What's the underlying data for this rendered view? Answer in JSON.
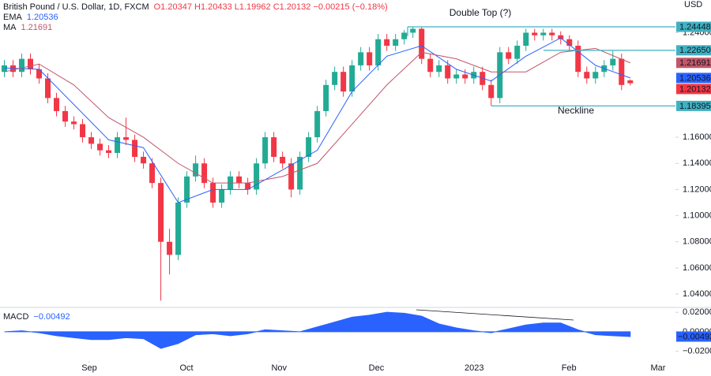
{
  "chart_data": [
    {
      "type": "candlestick",
      "title": "British Pound / U.S. Dollar, 1D, FXCM",
      "subtitle": "O1.20347 H1.20433 L1.19962 C1.20132 −0.00215 (−0.18%)",
      "unit": "USD",
      "xlim": [
        -0.5,
        77.2
      ],
      "xticks": [
        {
          "value": 9.77,
          "label": "Sep"
        },
        {
          "value": 20.95,
          "label": "Oct"
        },
        {
          "value": 31.6,
          "label": "Nov"
        },
        {
          "value": 42.8,
          "label": "Dec"
        },
        {
          "value": 54.05,
          "label": "2023"
        },
        {
          "value": 64.95,
          "label": "Feb"
        },
        {
          "value": 75.2,
          "label": "Mar"
        }
      ],
      "ylim": [
        1.031,
        1.265
      ],
      "yticks": [
        {
          "value": 1.04,
          "label": "1.04000"
        },
        {
          "value": 1.06,
          "label": "1.06000"
        },
        {
          "value": 1.08,
          "label": "1.08000"
        },
        {
          "value": 1.1,
          "label": "1.10000"
        },
        {
          "value": 1.12,
          "label": "1.12000"
        },
        {
          "value": 1.14,
          "label": "1.14000"
        },
        {
          "value": 1.16,
          "label": "1.16000"
        },
        {
          "value": 1.24,
          "label": "1.24000"
        }
      ],
      "up_color": "#22ab94",
      "down_color": "#f23645",
      "open": [
        1.21,
        1.215,
        1.21,
        1.22,
        1.212,
        1.205,
        1.19,
        1.18,
        1.172,
        1.17,
        1.16,
        1.155,
        1.15,
        1.148,
        1.16,
        1.158,
        1.145,
        1.14,
        1.125,
        1.08,
        1.07,
        1.11,
        1.13,
        1.14,
        1.125,
        1.11,
        1.12,
        1.13,
        1.125,
        1.12,
        1.14,
        1.16,
        1.145,
        1.14,
        1.12,
        1.145,
        1.16,
        1.18,
        1.2,
        1.21,
        1.195,
        1.215,
        1.225,
        1.215,
        1.235,
        1.23,
        1.235,
        1.24,
        1.243,
        1.22,
        1.21,
        1.215,
        1.205,
        1.208,
        1.205,
        1.21,
        1.2,
        1.19,
        1.225,
        1.22,
        1.23,
        1.24,
        1.238,
        1.24,
        1.238,
        1.235,
        1.23,
        1.21,
        1.205,
        1.21,
        1.215,
        1.22,
        1.20347
      ],
      "high": [
        1.219,
        1.219,
        1.224,
        1.224,
        1.216,
        1.209,
        1.194,
        1.184,
        1.176,
        1.174,
        1.164,
        1.159,
        1.154,
        1.164,
        1.175,
        1.162,
        1.149,
        1.144,
        1.129,
        1.09,
        1.114,
        1.134,
        1.146,
        1.144,
        1.129,
        1.124,
        1.134,
        1.134,
        1.129,
        1.144,
        1.164,
        1.164,
        1.149,
        1.144,
        1.149,
        1.164,
        1.184,
        1.204,
        1.214,
        1.214,
        1.219,
        1.229,
        1.229,
        1.239,
        1.239,
        1.239,
        1.242,
        1.2445,
        1.244,
        1.224,
        1.219,
        1.219,
        1.212,
        1.212,
        1.214,
        1.214,
        1.204,
        1.229,
        1.229,
        1.234,
        1.243,
        1.243,
        1.243,
        1.243,
        1.241,
        1.238,
        1.234,
        1.214,
        1.214,
        1.219,
        1.226,
        1.224,
        1.20433
      ],
      "low": [
        1.206,
        1.206,
        1.206,
        1.208,
        1.201,
        1.186,
        1.176,
        1.168,
        1.166,
        1.156,
        1.151,
        1.146,
        1.144,
        1.144,
        1.154,
        1.141,
        1.136,
        1.121,
        1.035,
        1.055,
        1.066,
        1.106,
        1.126,
        1.121,
        1.106,
        1.106,
        1.116,
        1.121,
        1.116,
        1.116,
        1.136,
        1.141,
        1.136,
        1.114,
        1.116,
        1.141,
        1.156,
        1.176,
        1.196,
        1.191,
        1.191,
        1.211,
        1.211,
        1.211,
        1.226,
        1.226,
        1.231,
        1.236,
        1.216,
        1.206,
        1.206,
        1.201,
        1.201,
        1.201,
        1.201,
        1.196,
        1.184,
        1.186,
        1.216,
        1.216,
        1.226,
        1.234,
        1.234,
        1.234,
        1.231,
        1.226,
        1.206,
        1.201,
        1.201,
        1.206,
        1.211,
        1.196,
        1.19962
      ],
      "close": [
        1.215,
        1.21,
        1.22,
        1.212,
        1.205,
        1.19,
        1.18,
        1.172,
        1.17,
        1.16,
        1.155,
        1.15,
        1.148,
        1.16,
        1.158,
        1.145,
        1.14,
        1.125,
        1.08,
        1.07,
        1.11,
        1.13,
        1.14,
        1.125,
        1.11,
        1.12,
        1.13,
        1.125,
        1.12,
        1.14,
        1.16,
        1.145,
        1.14,
        1.12,
        1.145,
        1.16,
        1.18,
        1.2,
        1.21,
        1.195,
        1.215,
        1.225,
        1.215,
        1.235,
        1.23,
        1.235,
        1.24,
        1.243,
        1.22,
        1.21,
        1.215,
        1.205,
        1.208,
        1.205,
        1.21,
        1.2,
        1.19,
        1.225,
        1.22,
        1.23,
        1.24,
        1.238,
        1.24,
        1.238,
        1.235,
        1.23,
        1.21,
        1.205,
        1.21,
        1.215,
        1.22,
        1.2,
        1.20132
      ],
      "close_label": "1.20132",
      "overlays": [
        {
          "name": "EMA",
          "color": "#2962ff",
          "last_label": "1.20536",
          "x": [
            0,
            4,
            8,
            12,
            16,
            20,
            24,
            28,
            32,
            36,
            40,
            44,
            48,
            52,
            56,
            60,
            64,
            68,
            72
          ],
          "values": [
            1.213,
            1.212,
            1.185,
            1.158,
            1.152,
            1.11,
            1.12,
            1.12,
            1.135,
            1.15,
            1.195,
            1.222,
            1.23,
            1.212,
            1.203,
            1.222,
            1.236,
            1.215,
            1.20536
          ]
        },
        {
          "name": "MA",
          "color": "#c2566a",
          "last_label": "1.21691",
          "x": [
            0,
            4,
            8,
            12,
            16,
            20,
            24,
            28,
            32,
            36,
            40,
            44,
            48,
            52,
            56,
            60,
            64,
            68,
            72
          ],
          "values": [
            1.21,
            1.216,
            1.2,
            1.175,
            1.16,
            1.14,
            1.125,
            1.125,
            1.13,
            1.14,
            1.17,
            1.2,
            1.225,
            1.22,
            1.21,
            1.21,
            1.225,
            1.228,
            1.21691
          ]
        }
      ],
      "levels": [
        {
          "value": 1.24448,
          "label": "1.24448"
        },
        {
          "value": 1.2265,
          "label": "1.22650"
        },
        {
          "value": 1.18395,
          "label": "1.18395"
        }
      ],
      "level_color": "#3fb1c2",
      "annotations": [
        "Double Top (?)",
        "Neckline"
      ]
    },
    {
      "type": "area",
      "title": "MACD",
      "color": "#2962ff",
      "last_label": "−0.00492",
      "ylim": [
        -0.03,
        0.025
      ],
      "yticks": [
        {
          "value": 0.02,
          "label": "0.02000"
        },
        {
          "value": 0,
          "label": "0.00000"
        },
        {
          "value": -0.02,
          "label": "−0.02000"
        }
      ],
      "x": [
        0,
        2,
        4,
        6,
        8,
        10,
        12,
        14,
        16,
        18,
        20,
        22,
        24,
        26,
        28,
        30,
        32,
        34,
        36,
        38,
        40,
        42,
        44,
        46,
        48,
        50,
        52,
        54,
        56,
        58,
        60,
        62,
        64,
        66,
        68,
        70,
        72
      ],
      "values": [
        0.0,
        0.001,
        -0.001,
        -0.004,
        -0.006,
        -0.008,
        -0.008,
        -0.006,
        -0.007,
        -0.017,
        -0.012,
        -0.003,
        -0.002,
        -0.004,
        -0.002,
        0.002,
        0.001,
        0.0,
        0.005,
        0.01,
        0.015,
        0.017,
        0.02,
        0.019,
        0.016,
        0.008,
        0.004,
        0.001,
        -0.001,
        0.003,
        0.007,
        0.009,
        0.009,
        0.002,
        -0.003,
        -0.004,
        -0.00492
      ]
    }
  ]
}
